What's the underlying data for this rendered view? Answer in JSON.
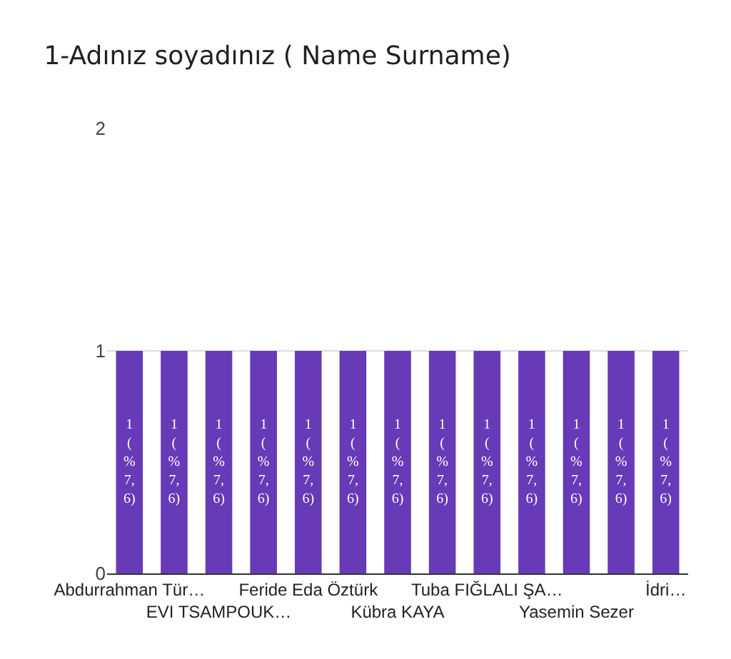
{
  "chart_data": {
    "type": "bar",
    "title": "1-Adınız soyadınız ( Name Surname)",
    "categories": [
      "Abdurrahman Tür…",
      null,
      "EVI TSAMPOUK…",
      null,
      "Feride Eda Öztürk",
      null,
      "Kübra KAYA",
      null,
      "Tuba FIĞLALI ŞA…",
      null,
      "Yasemin Sezer",
      null,
      "İdri…"
    ],
    "values": [
      1,
      1,
      1,
      1,
      1,
      1,
      1,
      1,
      1,
      1,
      1,
      1,
      1
    ],
    "value_labels": [
      "1 (%7,6)",
      "1 (%7,6)",
      "1 (%7,6)",
      "1 (%7,6)",
      "1 (%7,6)",
      "1 (%7,6)",
      "1 (%7,6)",
      "1 (%7,6)",
      "1 (%7,6)",
      "1 (%7,6)",
      "1 (%7,6)",
      "1 (%7,6)",
      "1 (%7,6)"
    ],
    "color": "#673ab7",
    "ylim": [
      0,
      2
    ],
    "yticks": [
      0,
      1,
      2
    ],
    "grid": "y"
  }
}
